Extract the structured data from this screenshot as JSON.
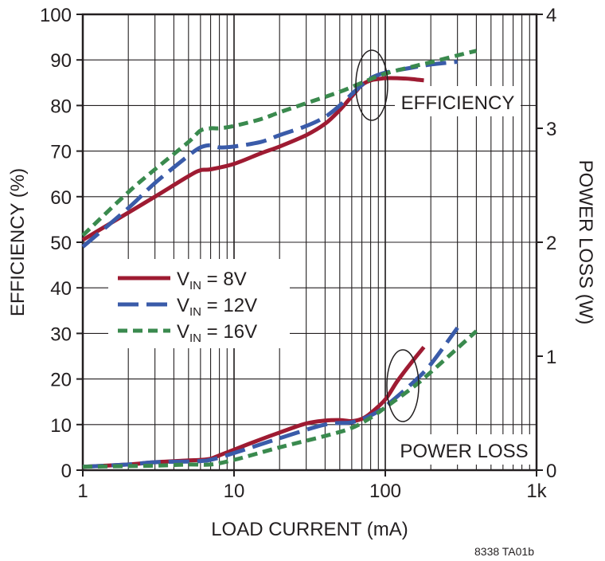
{
  "chart_data": {
    "type": "line",
    "x_scale": "log",
    "xlim": [
      1,
      1000
    ],
    "ylim_left": [
      0,
      100
    ],
    "ylim_right": [
      0,
      4
    ],
    "xlabel": "LOAD CURRENT (mA)",
    "ylabel_left": "EFFICIENCY (%)",
    "ylabel_right": "POWER LOSS (W)",
    "x_ticks": [
      {
        "value": 1,
        "label": "1"
      },
      {
        "value": 10,
        "label": "10"
      },
      {
        "value": 100,
        "label": "100"
      },
      {
        "value": 1000,
        "label": "1k"
      }
    ],
    "y_ticks_left": [
      "0",
      "10",
      "20",
      "30",
      "40",
      "50",
      "60",
      "70",
      "80",
      "90",
      "100"
    ],
    "y_ticks_right": [
      "0",
      "1",
      "2",
      "3",
      "4"
    ],
    "grid": true,
    "annotations": {
      "efficiency": "EFFICIENCY",
      "power_loss": "POWER LOSS"
    },
    "footnote": "8338 TA01b",
    "legend": {
      "placement": "center-left",
      "entries": [
        {
          "prefix": "V",
          "sub": "IN",
          "suffix": " = 8V"
        },
        {
          "prefix": "V",
          "sub": "IN",
          "suffix": " = 12V"
        },
        {
          "prefix": "V",
          "sub": "IN",
          "suffix": " = 16V"
        }
      ]
    },
    "series": [
      {
        "name": "VIN = 8V",
        "group": "efficiency",
        "axis": "left",
        "color": "#9e1b32",
        "dash": "solid",
        "x": [
          1,
          2,
          3,
          5,
          6,
          7,
          10,
          15,
          20,
          30,
          40,
          50,
          60,
          70,
          80,
          90,
          100,
          120,
          150,
          180
        ],
        "y": [
          50.5,
          56.5,
          60,
          64.5,
          65.8,
          66,
          67.2,
          69.5,
          71,
          73.5,
          76,
          79,
          82,
          84.5,
          85.5,
          85.8,
          86,
          86,
          85.8,
          85.5
        ]
      },
      {
        "name": "VIN = 12V",
        "group": "efficiency",
        "axis": "left",
        "color": "#3a5ba9",
        "dash": "long",
        "x": [
          1,
          2,
          3,
          5,
          6,
          7,
          8,
          10,
          15,
          20,
          30,
          40,
          50,
          60,
          70,
          80,
          100,
          150,
          200,
          300
        ],
        "y": [
          49,
          57.5,
          63,
          69,
          70.8,
          71.3,
          70.8,
          71,
          72,
          73.5,
          75.5,
          77.5,
          80,
          82.5,
          84.5,
          86,
          87.2,
          88.3,
          89,
          89.6
        ]
      },
      {
        "name": "VIN = 16V",
        "group": "efficiency",
        "axis": "left",
        "color": "#3a8a4e",
        "dash": "short",
        "x": [
          1,
          2,
          3,
          5,
          6,
          7,
          8,
          10,
          15,
          20,
          30,
          50,
          70,
          100,
          150,
          200,
          300,
          400
        ],
        "y": [
          51.5,
          61,
          66,
          72,
          74.5,
          75,
          75,
          75.5,
          77,
          78.5,
          80.5,
          83,
          85,
          87,
          88.5,
          89.5,
          91,
          92
        ]
      },
      {
        "name": "VIN = 8V",
        "group": "power_loss",
        "axis": "right",
        "color": "#9e1b32",
        "dash": "solid",
        "x": [
          1,
          2,
          3,
          5,
          6,
          7,
          8,
          10,
          15,
          20,
          30,
          40,
          50,
          60,
          70,
          80,
          100,
          120,
          150,
          180
        ],
        "y": [
          0.03,
          0.05,
          0.07,
          0.085,
          0.09,
          0.1,
          0.13,
          0.18,
          0.27,
          0.33,
          0.41,
          0.435,
          0.44,
          0.43,
          0.45,
          0.5,
          0.62,
          0.78,
          0.95,
          1.08
        ]
      },
      {
        "name": "VIN = 12V",
        "group": "power_loss",
        "axis": "right",
        "color": "#3a5ba9",
        "dash": "long",
        "x": [
          1,
          2,
          3,
          5,
          6,
          7,
          10,
          20,
          40,
          60,
          80,
          100,
          150,
          200,
          300
        ],
        "y": [
          0.03,
          0.05,
          0.07,
          0.075,
          0.08,
          0.09,
          0.15,
          0.28,
          0.4,
          0.42,
          0.48,
          0.56,
          0.76,
          0.93,
          1.25
        ]
      },
      {
        "name": "VIN = 16V",
        "group": "power_loss",
        "axis": "right",
        "color": "#3a8a4e",
        "dash": "short",
        "x": [
          1,
          3,
          5,
          7,
          10,
          20,
          40,
          60,
          80,
          100,
          150,
          200,
          300,
          400
        ],
        "y": [
          0.03,
          0.04,
          0.05,
          0.05,
          0.09,
          0.2,
          0.3,
          0.37,
          0.46,
          0.55,
          0.72,
          0.86,
          1.07,
          1.22
        ]
      }
    ]
  }
}
